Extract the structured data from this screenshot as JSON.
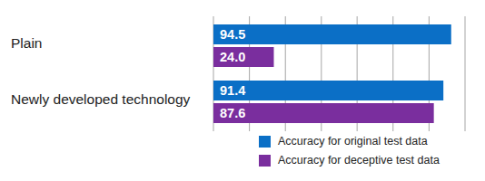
{
  "chart_data": {
    "type": "bar",
    "orientation": "horizontal",
    "categories": [
      "Plain",
      "Newly developed technology"
    ],
    "series": [
      {
        "name": "Accuracy for original test data",
        "color": "#0b6fc6",
        "values": [
          94.5,
          91.4
        ],
        "value_labels": [
          "94.5",
          "91.4"
        ]
      },
      {
        "name": "Accuracy for deceptive test data",
        "color": "#7a2e9e",
        "values": [
          24.0,
          87.6
        ],
        "value_labels": [
          "24.0",
          "87.6"
        ]
      }
    ],
    "xlim": [
      0,
      100
    ],
    "xticks": [
      0,
      14.3,
      28.6,
      42.9,
      57.1,
      71.4,
      85.7,
      100
    ],
    "grid": true,
    "tick_labels": false,
    "data_labels": true,
    "legend": "bottom-right"
  }
}
